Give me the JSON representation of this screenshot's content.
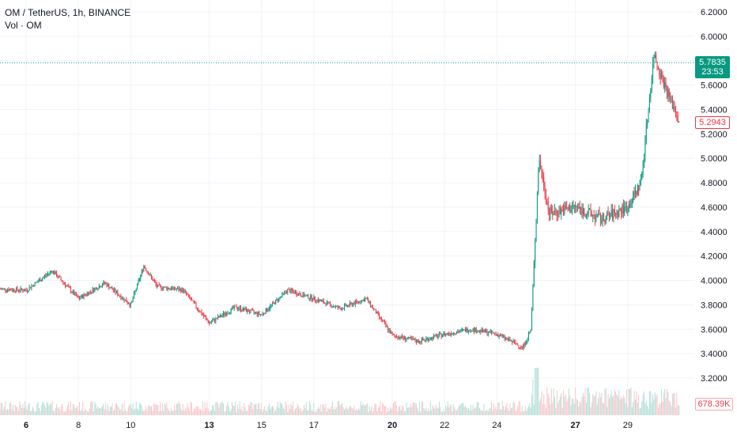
{
  "legend": {
    "title": "OM / TetherUS, 1h, BINANCE",
    "volume": "Vol · OM"
  },
  "colors": {
    "up": "#089981",
    "down": "#f23645",
    "vol_up": "#b2dfd8",
    "vol_down": "#fbc5c9",
    "grid": "#f0f3fa",
    "axis_text": "#131722"
  },
  "tags": {
    "last_price": "5.7835",
    "countdown": "23:53",
    "ref_price": "5.2943",
    "volume": "678.39K"
  },
  "chart_data": {
    "type": "candlestick",
    "title": "OM / TetherUS, 1h, BINANCE",
    "xlabel": "",
    "ylabel": "",
    "ylim": [
      3.0,
      6.25
    ],
    "y_ticks": [
      "6.2000",
      "6.0000",
      "5.8000",
      "5.6000",
      "5.4000",
      "5.2000",
      "5.0000",
      "4.8000",
      "4.6000",
      "4.4000",
      "4.2000",
      "4.0000",
      "3.8000",
      "3.6000",
      "3.4000",
      "3.2000"
    ],
    "x_ticks": [
      "6",
      "8",
      "10",
      "13",
      "15",
      "17",
      "20",
      "22",
      "24",
      "27",
      "29"
    ],
    "bold_x_ticks": [
      "6",
      "13",
      "20",
      "27"
    ],
    "grid": true,
    "last_price": 5.7835,
    "ref_price": 5.2943,
    "volume_last": "678.39K",
    "key_points": [
      {
        "day": "5",
        "price": 3.93
      },
      {
        "day": "6",
        "price": 3.92
      },
      {
        "day": "7",
        "price": 4.08
      },
      {
        "day": "8",
        "price": 3.85
      },
      {
        "day": "9",
        "price": 3.98
      },
      {
        "day": "10",
        "price": 3.8
      },
      {
        "day": "10.5",
        "price": 4.12
      },
      {
        "day": "11",
        "price": 3.95
      },
      {
        "day": "12",
        "price": 3.92
      },
      {
        "day": "13",
        "price": 3.65
      },
      {
        "day": "14",
        "price": 3.78
      },
      {
        "day": "15",
        "price": 3.72
      },
      {
        "day": "16",
        "price": 3.92
      },
      {
        "day": "17",
        "price": 3.85
      },
      {
        "day": "18",
        "price": 3.77
      },
      {
        "day": "19",
        "price": 3.85
      },
      {
        "day": "20",
        "price": 3.55
      },
      {
        "day": "21",
        "price": 3.5
      },
      {
        "day": "22",
        "price": 3.56
      },
      {
        "day": "23",
        "price": 3.6
      },
      {
        "day": "24",
        "price": 3.56
      },
      {
        "day": "25",
        "price": 3.45
      },
      {
        "day": "25.3",
        "price": 3.6
      },
      {
        "day": "25.6",
        "price": 5.0
      },
      {
        "day": "26",
        "price": 4.55
      },
      {
        "day": "27",
        "price": 4.6
      },
      {
        "day": "28",
        "price": 4.5
      },
      {
        "day": "29",
        "price": 4.6
      },
      {
        "day": "29.5",
        "price": 4.8
      },
      {
        "day": "30",
        "price": 5.85
      },
      {
        "day": "30.5",
        "price": 5.55
      },
      {
        "day": "31",
        "price": 5.29
      }
    ]
  }
}
